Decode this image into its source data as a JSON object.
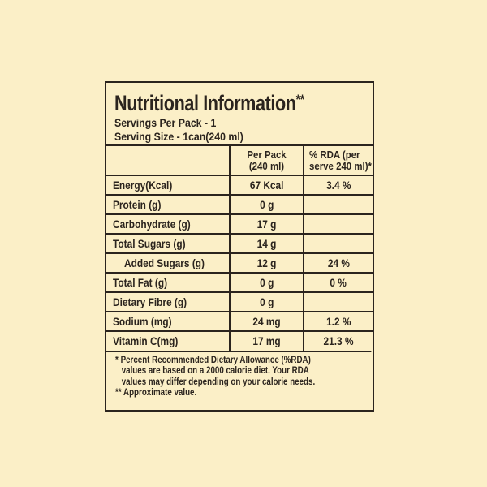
{
  "colors": {
    "background": "#FBEFC7",
    "ink": "#2B241E",
    "border": "#2B241E"
  },
  "label": {
    "title": "Nutritional Information",
    "title_asterisks": "**",
    "servings_line": "Servings Per Pack - 1",
    "serving_size_line": "Serving Size - 1can(240 ml)"
  },
  "table": {
    "columns": {
      "nutrient_header": "",
      "per_pack_line1": "Per Pack",
      "per_pack_line2": "(240 ml)",
      "rda_line1": "% RDA (per",
      "rda_line2": "serve 240 ml)*"
    },
    "rows": [
      {
        "label": "Energy(Kcal)",
        "per_pack": "67 Kcal",
        "rda": "3.4 %"
      },
      {
        "label": "Protein (g)",
        "per_pack": "0 g",
        "rda": ""
      },
      {
        "label": "Carbohydrate (g)",
        "per_pack": "17 g",
        "rda": ""
      },
      {
        "label": "Total Sugars (g)",
        "per_pack": "14 g",
        "rda": ""
      },
      {
        "label": "Added Sugars (g)",
        "per_pack": "12 g",
        "rda": "24 %"
      },
      {
        "label": "Total Fat (g)",
        "per_pack": "0 g",
        "rda": "0 %"
      },
      {
        "label": "Dietary Fibre (g)",
        "per_pack": "0 g",
        "rda": ""
      },
      {
        "label": "Sodium (mg)",
        "per_pack": "24 mg",
        "rda": "1.2 %"
      },
      {
        "label": "Vitamin C(mg)",
        "per_pack": "17 mg",
        "rda": "21.3 %"
      }
    ]
  },
  "footnotes": {
    "line1": "* Percent Recommended Dietary Allowance (%RDA)",
    "line2": "values are based on a 2000 calorie diet. Your RDA",
    "line3": "values may differ depending on your calorie needs.",
    "line4": "** Approximate value."
  }
}
